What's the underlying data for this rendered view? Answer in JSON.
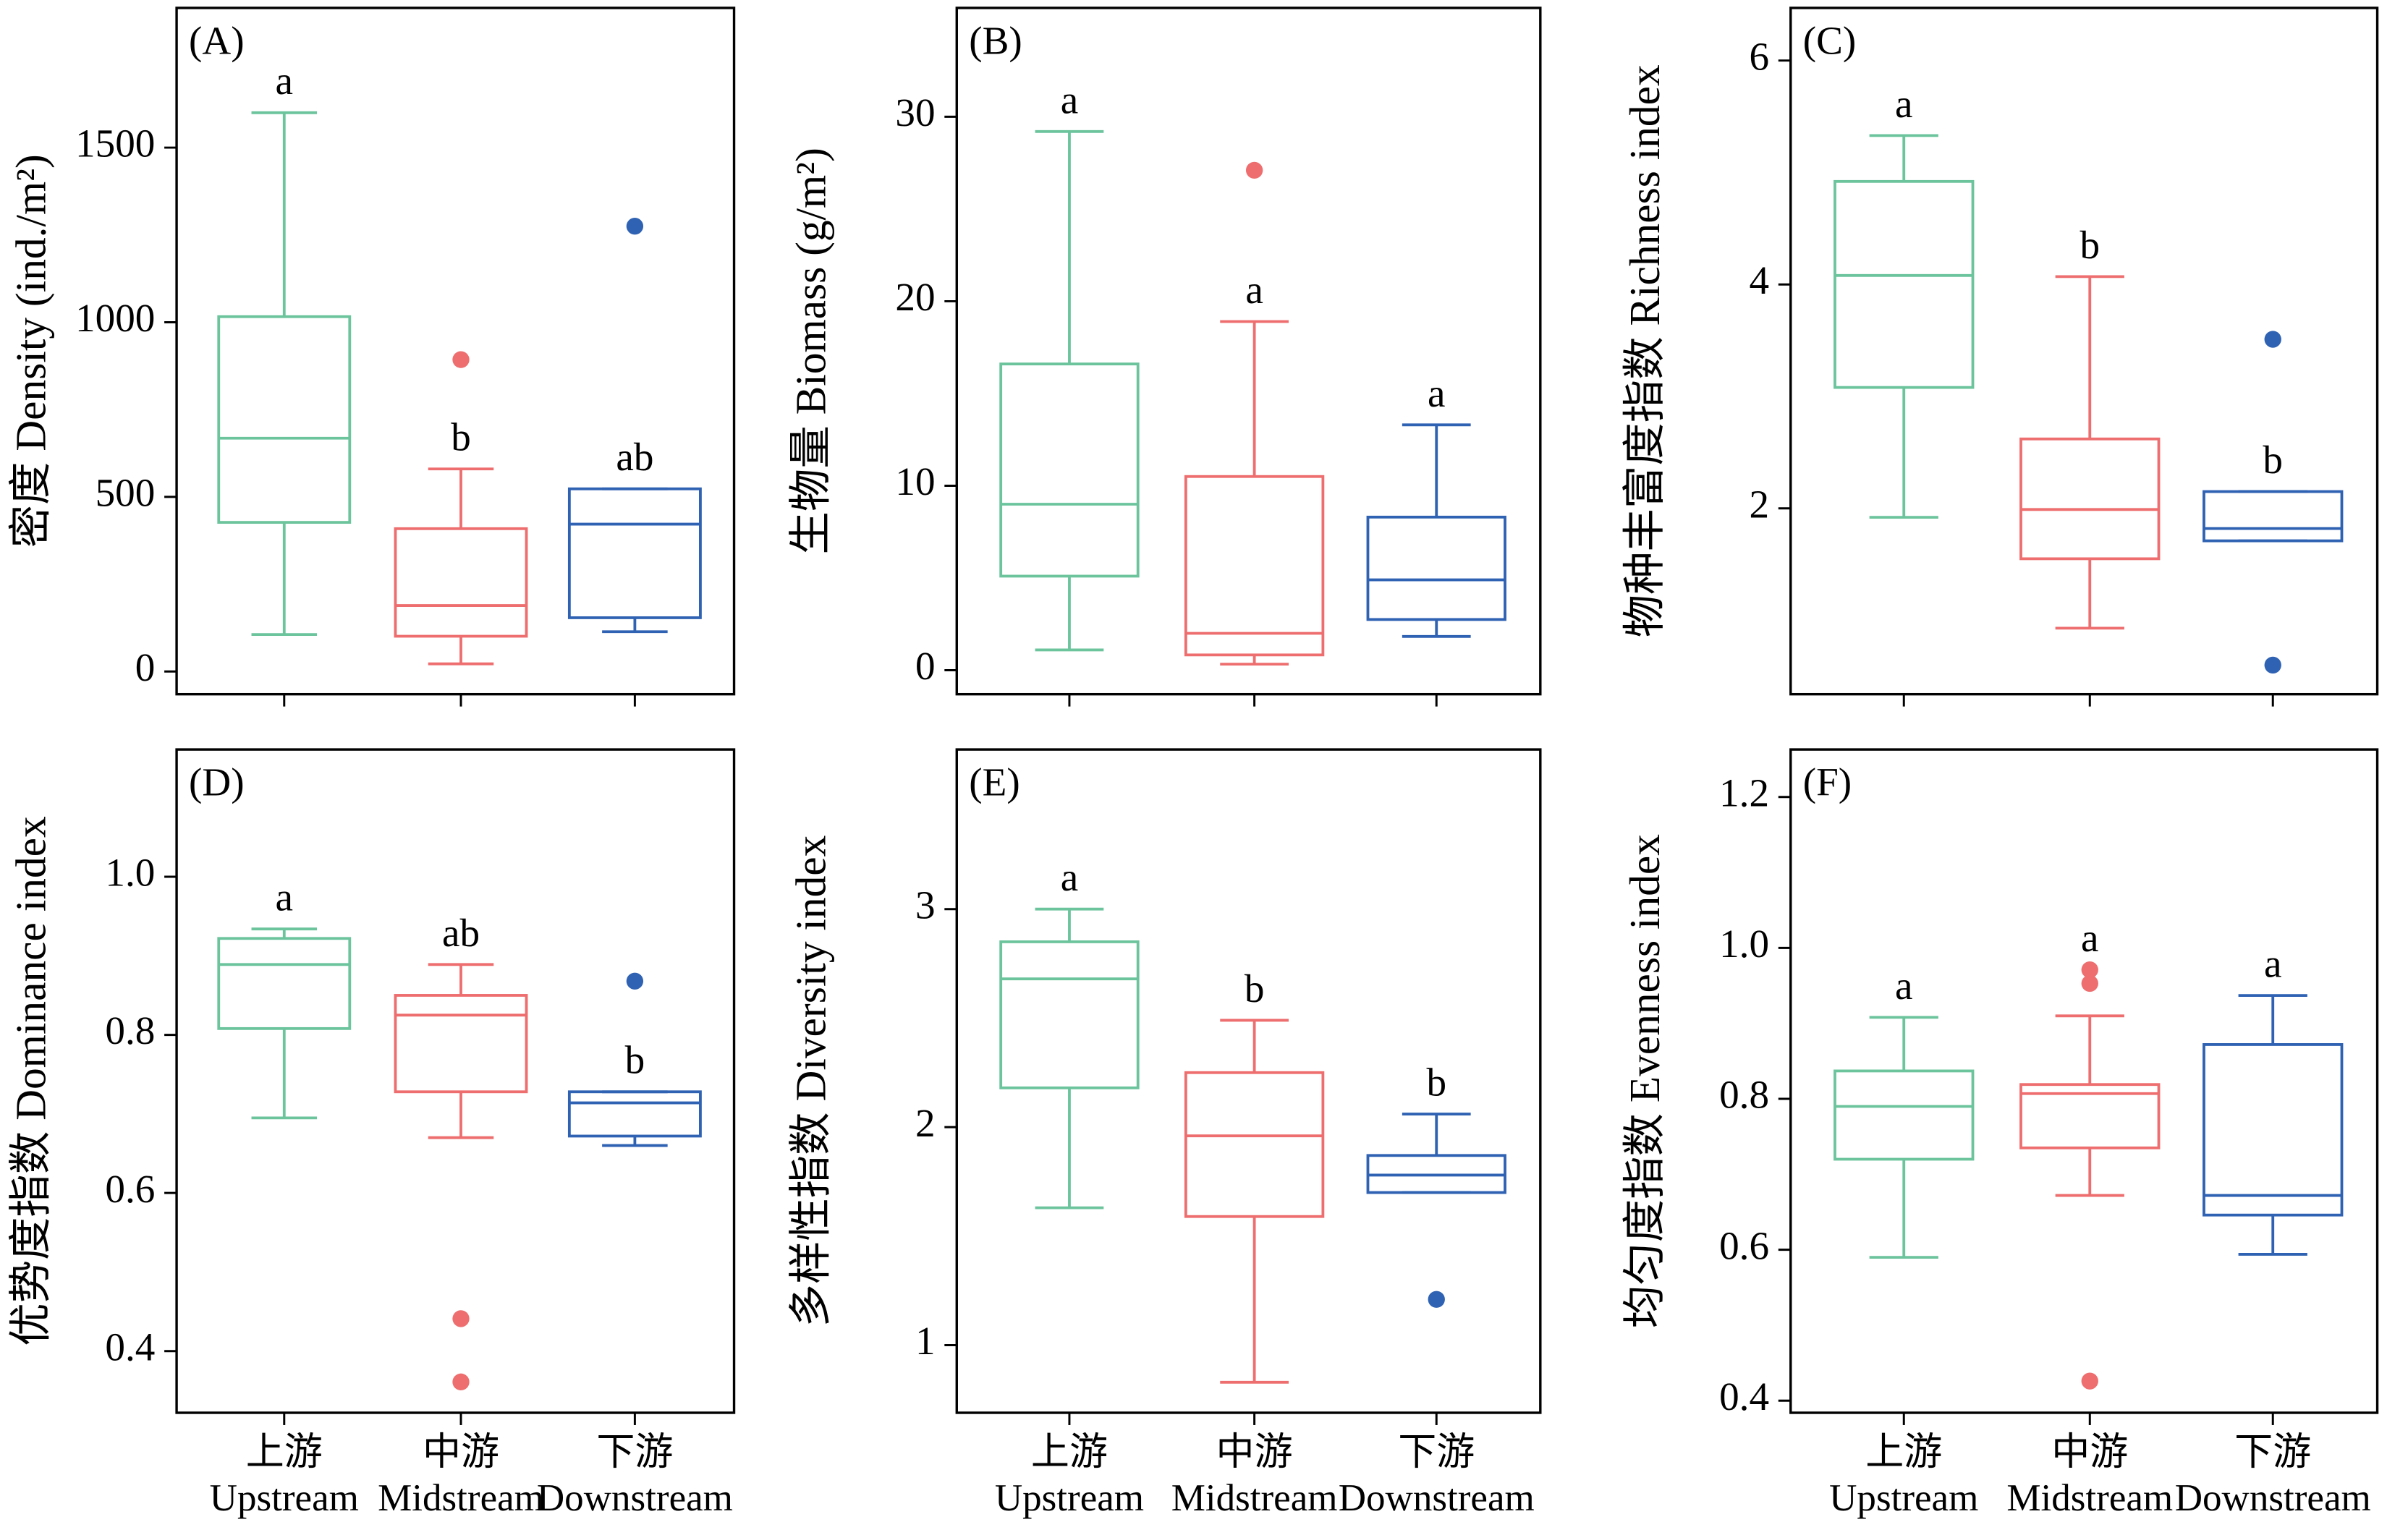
{
  "chart_data": [
    {
      "type": "box",
      "title": "(A)",
      "ylabel": "密度 Density (ind./m²)",
      "categories": [
        null,
        null,
        null
      ],
      "colors": [
        "#6cc49d",
        "#ee6e6f",
        "#2f62b3"
      ],
      "ylim": [
        -65,
        1900
      ],
      "yticks": [
        0,
        500,
        1000,
        1500
      ],
      "boxes": [
        {
          "min": 106,
          "q1": 427,
          "median": 668,
          "q3": 1016,
          "max": 1600,
          "outliers": [],
          "label": "a"
        },
        {
          "min": 22,
          "q1": 101,
          "median": 189,
          "q3": 409,
          "max": 580,
          "outliers": [
            893
          ],
          "label": "b"
        },
        {
          "min": 114,
          "q1": 154,
          "median": 422,
          "q3": 523,
          "max": 523,
          "outliers": [
            1275
          ],
          "label": "ab"
        }
      ]
    },
    {
      "type": "box",
      "title": "(B)",
      "ylabel": "生物量 Biomass (g/m²)",
      "categories": [
        null,
        null,
        null
      ],
      "colors": [
        "#6cc49d",
        "#ee6e6f",
        "#2f62b3"
      ],
      "ylim": [
        -1.3,
        35.9
      ],
      "yticks": [
        0,
        10,
        20,
        30
      ],
      "boxes": [
        {
          "min": 1.1,
          "q1": 5.1,
          "median": 9.0,
          "q3": 16.6,
          "max": 29.2,
          "outliers": [],
          "label": "a"
        },
        {
          "min": 0.33,
          "q1": 0.83,
          "median": 2.0,
          "q3": 10.5,
          "max": 18.9,
          "outliers": [
            27.1
          ],
          "label": "a"
        },
        {
          "min": 1.83,
          "q1": 2.75,
          "median": 4.9,
          "q3": 8.3,
          "max": 13.3,
          "outliers": [],
          "label": "a"
        }
      ]
    },
    {
      "type": "box",
      "title": "(C)",
      "ylabel": "物种丰富度指数 Richness index",
      "categories": [
        null,
        null,
        null
      ],
      "colors": [
        "#6cc49d",
        "#ee6e6f",
        "#2f62b3"
      ],
      "ylim": [
        0.34,
        6.47
      ],
      "yticks": [
        2,
        4,
        6
      ],
      "boxes": [
        {
          "min": 1.92,
          "q1": 3.08,
          "median": 4.08,
          "q3": 4.92,
          "max": 5.33,
          "outliers": [],
          "label": "a"
        },
        {
          "min": 0.93,
          "q1": 1.55,
          "median": 1.99,
          "q3": 2.62,
          "max": 4.07,
          "outliers": [],
          "label": "b"
        },
        {
          "min": 1.71,
          "q1": 1.71,
          "median": 1.82,
          "q3": 2.15,
          "max": 2.15,
          "outliers": [
            3.51,
            0.6
          ],
          "label": "b"
        }
      ]
    },
    {
      "type": "box",
      "title": "(D)",
      "ylabel": "优势度指数 Dominance index",
      "categories": [
        [
          "上游",
          "Upstream"
        ],
        [
          "中游",
          "Midstream"
        ],
        [
          "下游",
          "Downstream"
        ]
      ],
      "colors": [
        "#6cc49d",
        "#ee6e6f",
        "#2f62b3"
      ],
      "ylim": [
        0.322,
        1.161
      ],
      "yticks": [
        0.4,
        0.6,
        0.8,
        {
          "value": 1,
          "label": "1.0"
        }
      ],
      "boxes": [
        {
          "min": 0.695,
          "q1": 0.808,
          "median": 0.889,
          "q3": 0.922,
          "max": 0.934,
          "outliers": [],
          "label": "a"
        },
        {
          "min": 0.67,
          "q1": 0.728,
          "median": 0.825,
          "q3": 0.85,
          "max": 0.889,
          "outliers": [
            0.441,
            0.361
          ],
          "label": "ab"
        },
        {
          "min": 0.66,
          "q1": 0.672,
          "median": 0.714,
          "q3": 0.728,
          "max": 0.728,
          "outliers": [
            0.868
          ],
          "label": "b"
        }
      ]
    },
    {
      "type": "box",
      "title": "(E)",
      "ylabel": "多样性指数 Diversity index",
      "categories": [
        [
          "上游",
          "Upstream"
        ],
        [
          "中游",
          "Midstream"
        ],
        [
          "下游",
          "Downstream"
        ]
      ],
      "colors": [
        "#6cc49d",
        "#ee6e6f",
        "#2f62b3"
      ],
      "ylim": [
        0.69,
        3.732
      ],
      "yticks": [
        1,
        2,
        3
      ],
      "boxes": [
        {
          "min": 1.63,
          "q1": 2.18,
          "median": 2.68,
          "q3": 2.85,
          "max": 3.0,
          "outliers": [],
          "label": "a"
        },
        {
          "min": 0.83,
          "q1": 1.59,
          "median": 1.96,
          "q3": 2.25,
          "max": 2.49,
          "outliers": [],
          "label": "b"
        },
        {
          "min": 1.7,
          "q1": 1.7,
          "median": 1.78,
          "q3": 1.87,
          "max": 2.06,
          "outliers": [
            1.21
          ],
          "label": "b"
        }
      ]
    },
    {
      "type": "box",
      "title": "(F)",
      "ylabel": "均匀度指数 Evenness index",
      "categories": [
        [
          "上游",
          "Upstream"
        ],
        [
          "中游",
          "Midstream"
        ],
        [
          "下游",
          "Downstream"
        ]
      ],
      "colors": [
        "#6cc49d",
        "#ee6e6f",
        "#2f62b3"
      ],
      "ylim": [
        0.384,
        1.263
      ],
      "yticks": [
        0.4,
        0.6,
        0.8,
        {
          "value": 1,
          "label": "1.0"
        },
        1.2
      ],
      "boxes": [
        {
          "min": 0.59,
          "q1": 0.72,
          "median": 0.79,
          "q3": 0.837,
          "max": 0.908,
          "outliers": [],
          "label": "a"
        },
        {
          "min": 0.672,
          "q1": 0.735,
          "median": 0.807,
          "q3": 0.819,
          "max": 0.91,
          "outliers": [
            0.971,
            0.953,
            0.426
          ],
          "label": "a"
        },
        {
          "min": 0.594,
          "q1": 0.646,
          "median": 0.672,
          "q3": 0.872,
          "max": 0.937,
          "outliers": [],
          "label": "a"
        }
      ]
    }
  ]
}
